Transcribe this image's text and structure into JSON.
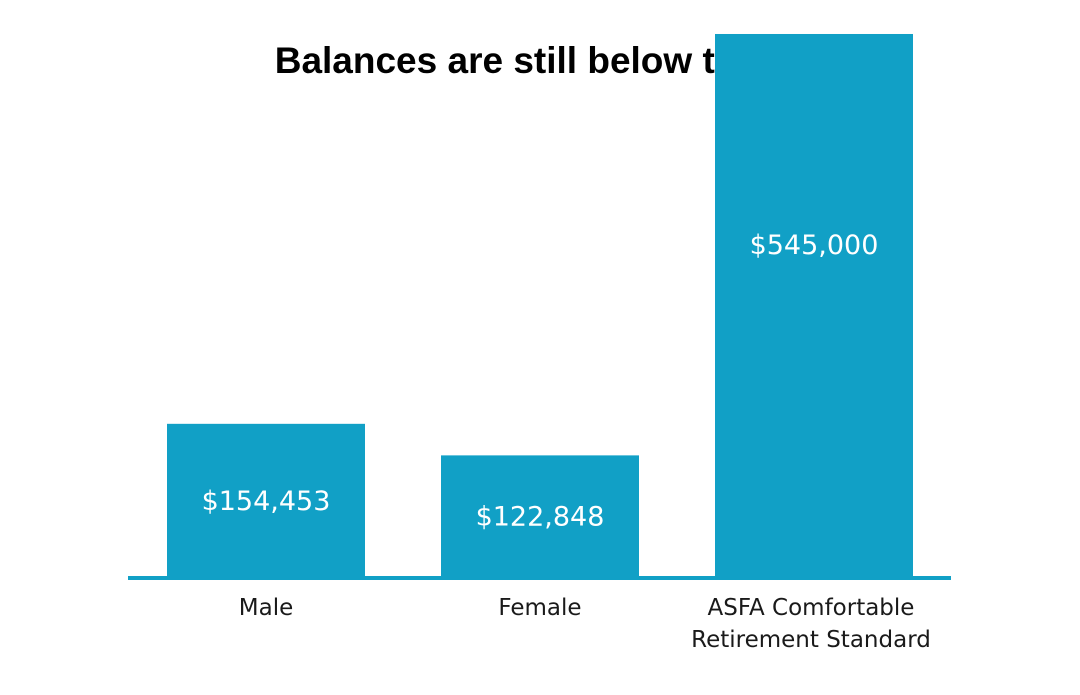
{
  "chart_data": {
    "type": "bar",
    "title": "Balances are still below target",
    "categories": [
      [
        "Male"
      ],
      [
        "Female"
      ],
      [
        "ASFA Comfortable",
        "Retirement Standard"
      ]
    ],
    "series": [
      {
        "values": [
          154453,
          122848,
          545000
        ],
        "value_labels": [
          "$154,453",
          "$122,848",
          "$545,000"
        ]
      }
    ],
    "ylim": [
      0,
      550000
    ],
    "grid": false,
    "bar_color": "#11A0C6",
    "axis_color": "#11A0C6"
  }
}
